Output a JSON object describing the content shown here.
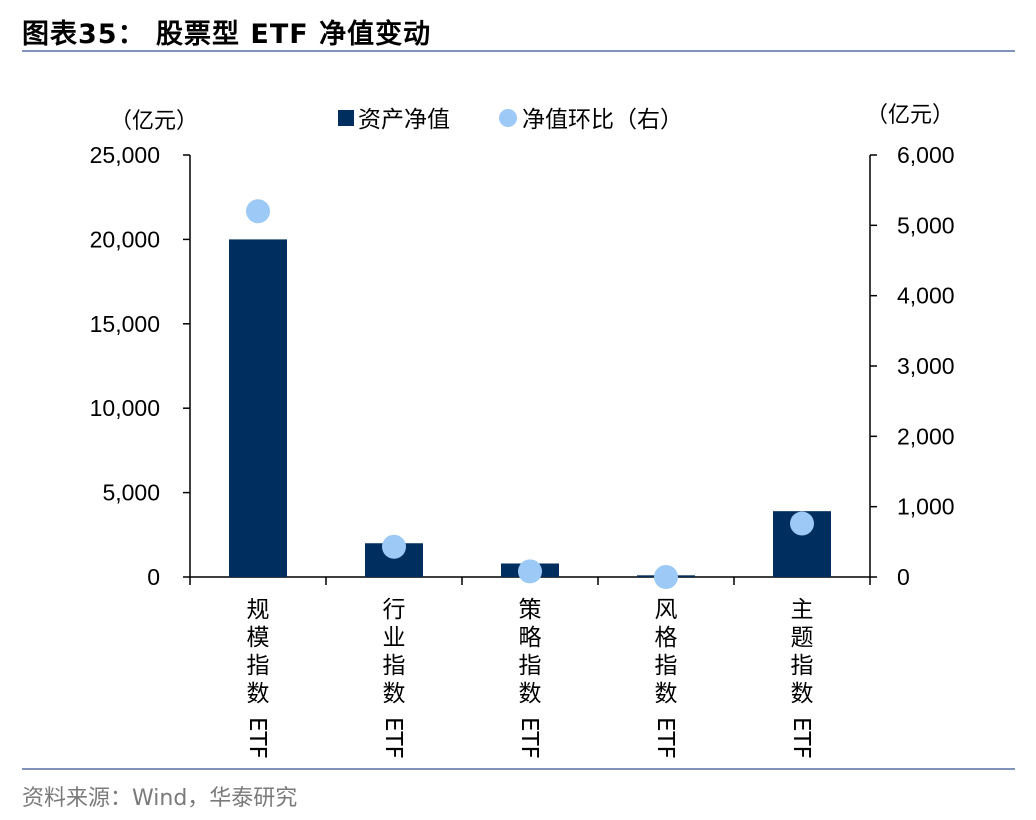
{
  "header": {
    "title": "图表35： 股票型 ETF 净值变动"
  },
  "footer": {
    "source": "资料来源：Wind，华泰研究"
  },
  "colors": {
    "bar": "#002f5f",
    "dot": "#9cc9f5",
    "rule": "#7f94b8"
  },
  "chart_data": {
    "type": "bar",
    "categories": [
      "规模指数ETF",
      "行业指数ETF",
      "策略指数ETF",
      "风格指数ETF",
      "主题指数ETF"
    ],
    "series": [
      {
        "name": "资产净值",
        "type": "bar",
        "axis": "left",
        "values": [
          20000,
          2000,
          800,
          100,
          3900
        ]
      },
      {
        "name": "净值环比（右）",
        "type": "scatter",
        "axis": "right",
        "values": [
          5200,
          430,
          80,
          0,
          760
        ]
      }
    ],
    "left_axis": {
      "unit": "（亿元）",
      "ylim": [
        0,
        25000
      ],
      "ticks": [
        "0",
        "5,000",
        "10,000",
        "15,000",
        "20,000",
        "25,000"
      ]
    },
    "right_axis": {
      "unit": "（亿元）",
      "ylim": [
        0,
        6000
      ],
      "ticks": [
        "0",
        "1,000",
        "2,000",
        "3,000",
        "4,000",
        "5,000",
        "6,000"
      ]
    },
    "legend": {
      "placement": "top-center"
    },
    "grid": false
  }
}
